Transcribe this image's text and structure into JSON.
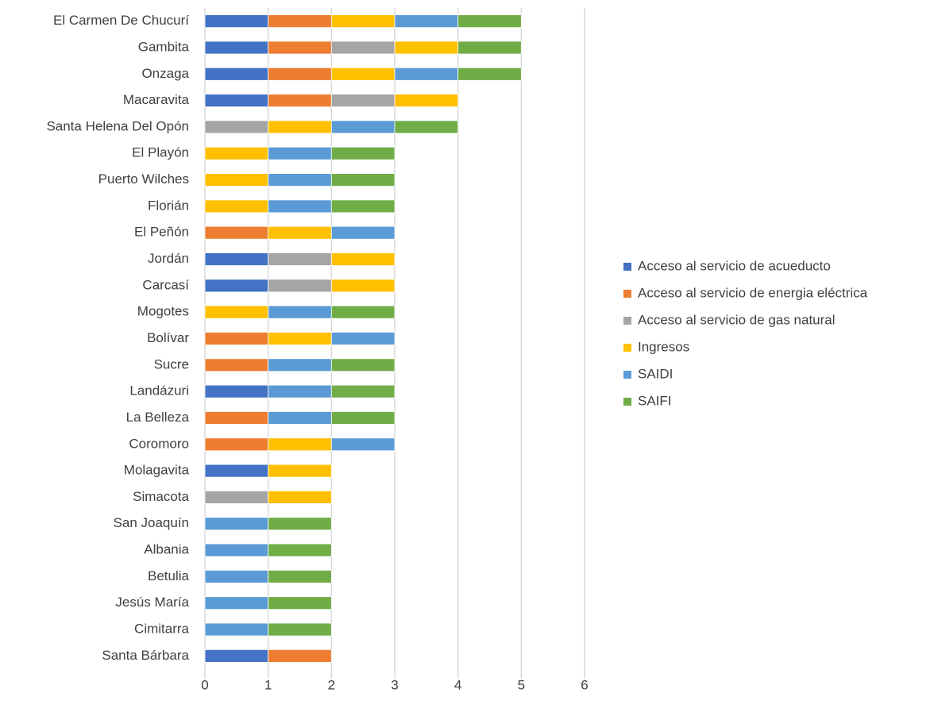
{
  "chart_data": {
    "type": "stacked_barh",
    "categories": [
      "El Carmen De Chucurí",
      "Gambita",
      "Onzaga",
      "Macaravita",
      "Santa Helena Del Opón",
      "El Playón",
      "Puerto Wilches",
      "Florián",
      "El Peñón",
      "Jordán",
      "Carcasí",
      "Mogotes",
      "Bolívar",
      "Sucre",
      "Landázuri",
      "La Belleza",
      "Coromoro",
      "Molagavita",
      "Simacota",
      "San Joaquín",
      "Albania",
      "Betulia",
      "Jesús María",
      "Cimitarra",
      "Santa Bárbara"
    ],
    "series": [
      {
        "name": "Acceso al servicio de acueducto",
        "color": "#4472c4",
        "values": [
          1,
          1,
          1,
          1,
          0,
          0,
          0,
          0,
          0,
          1,
          1,
          0,
          0,
          0,
          1,
          0,
          0,
          1,
          0,
          0,
          0,
          0,
          0,
          0,
          1
        ]
      },
      {
        "name": "Acceso al servicio de energia eléctrica",
        "color": "#ed7d31",
        "values": [
          1,
          1,
          1,
          1,
          0,
          0,
          0,
          0,
          1,
          0,
          0,
          0,
          1,
          1,
          0,
          1,
          1,
          0,
          0,
          0,
          0,
          0,
          0,
          0,
          1
        ]
      },
      {
        "name": "Acceso al servicio de gas natural",
        "color": "#a5a5a5",
        "values": [
          0,
          1,
          0,
          1,
          1,
          0,
          0,
          0,
          0,
          1,
          1,
          0,
          0,
          0,
          0,
          0,
          0,
          0,
          1,
          0,
          0,
          0,
          0,
          0,
          0
        ]
      },
      {
        "name": "Ingresos",
        "color": "#ffc000",
        "values": [
          1,
          1,
          1,
          1,
          1,
          1,
          1,
          1,
          1,
          1,
          1,
          1,
          1,
          0,
          0,
          0,
          1,
          1,
          1,
          0,
          0,
          0,
          0,
          0,
          0
        ]
      },
      {
        "name": "SAIDI",
        "color": "#5b9bd5",
        "values": [
          1,
          0,
          1,
          0,
          1,
          1,
          1,
          1,
          1,
          0,
          0,
          1,
          1,
          1,
          1,
          1,
          1,
          0,
          0,
          1,
          1,
          1,
          1,
          1,
          0
        ]
      },
      {
        "name": "SAIFI",
        "color": "#70ad47",
        "values": [
          1,
          1,
          1,
          0,
          1,
          1,
          1,
          1,
          0,
          0,
          0,
          1,
          0,
          1,
          1,
          1,
          0,
          0,
          0,
          1,
          1,
          1,
          1,
          1,
          0
        ]
      }
    ],
    "xlim": [
      0,
      6
    ],
    "xticks": [
      0,
      1,
      2,
      3,
      4,
      5,
      6
    ],
    "grid": true,
    "legend": "right"
  }
}
